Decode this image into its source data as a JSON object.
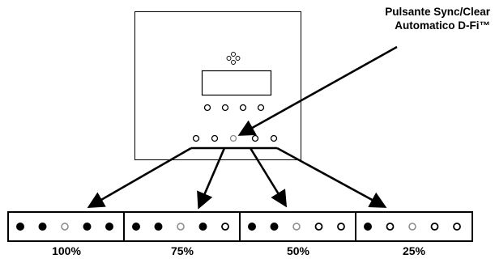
{
  "callout": {
    "line1": "Pulsante Sync/Clear",
    "line2": "Automatico D-Fi™"
  },
  "panels": [
    {
      "label": "100%",
      "leds": [
        "on",
        "on",
        "button",
        "on",
        "on"
      ]
    },
    {
      "label": "75%",
      "leds": [
        "on",
        "on",
        "button",
        "on",
        "off"
      ]
    },
    {
      "label": "50%",
      "leds": [
        "on",
        "on",
        "button",
        "off",
        "off"
      ]
    },
    {
      "label": "25%",
      "leds": [
        "on",
        "off",
        "button",
        "off",
        "off"
      ]
    }
  ],
  "colors": {
    "line": "#000000",
    "led_on": "#000000",
    "led_off": "#ffffff",
    "button_ring": "#8a8a8a"
  }
}
